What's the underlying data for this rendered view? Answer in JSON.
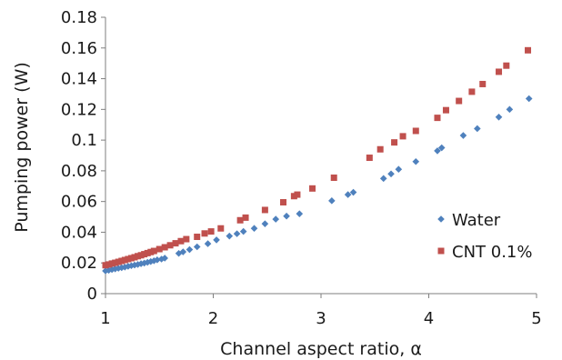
{
  "chart_data": {
    "type": "scatter",
    "title": "",
    "xlabel": "Channel aspect ratio, α",
    "ylabel": "Pumping power (W)",
    "xlim": [
      1,
      5
    ],
    "ylim": [
      0,
      0.18
    ],
    "xticks": [
      "1",
      "2",
      "3",
      "4",
      "5"
    ],
    "yticks": [
      "0",
      "0.02",
      "0.04",
      "0.06",
      "0.08",
      "0.1",
      "0.12",
      "0.14",
      "0.16",
      "0.18"
    ],
    "grid": false,
    "legend_position": "right",
    "series": [
      {
        "name": "Water",
        "marker": "diamond",
        "color": "#4f81bd",
        "x": [
          1.0,
          1.03,
          1.06,
          1.09,
          1.12,
          1.15,
          1.18,
          1.21,
          1.24,
          1.27,
          1.3,
          1.33,
          1.36,
          1.39,
          1.42,
          1.45,
          1.48,
          1.52,
          1.55,
          1.68,
          1.72,
          1.78,
          1.85,
          1.95,
          2.03,
          2.15,
          2.22,
          2.28,
          2.38,
          2.48,
          2.58,
          2.68,
          2.8,
          3.1,
          3.25,
          3.3,
          3.58,
          3.65,
          3.72,
          3.88,
          4.08,
          4.12,
          4.32,
          4.45,
          4.65,
          4.75,
          4.93
        ],
        "y": [
          0.0148,
          0.0152,
          0.0157,
          0.0161,
          0.0165,
          0.0169,
          0.0173,
          0.0178,
          0.0182,
          0.0186,
          0.019,
          0.0195,
          0.0199,
          0.0204,
          0.0209,
          0.0214,
          0.022,
          0.0225,
          0.0231,
          0.0262,
          0.0272,
          0.0287,
          0.0305,
          0.0325,
          0.035,
          0.0375,
          0.039,
          0.0405,
          0.0425,
          0.0455,
          0.0485,
          0.0505,
          0.052,
          0.0605,
          0.0645,
          0.066,
          0.075,
          0.078,
          0.081,
          0.086,
          0.093,
          0.095,
          0.103,
          0.1075,
          0.115,
          0.12,
          0.127
        ]
      },
      {
        "name": "CNT 0.1%",
        "marker": "square",
        "color": "#c0504d",
        "x": [
          1.0,
          1.03,
          1.06,
          1.09,
          1.12,
          1.15,
          1.18,
          1.21,
          1.24,
          1.27,
          1.3,
          1.33,
          1.36,
          1.39,
          1.42,
          1.45,
          1.5,
          1.55,
          1.6,
          1.65,
          1.7,
          1.75,
          1.85,
          1.92,
          1.98,
          2.07,
          2.25,
          2.3,
          2.48,
          2.65,
          2.75,
          2.78,
          2.92,
          3.12,
          3.45,
          3.55,
          3.68,
          3.76,
          3.88,
          4.08,
          4.16,
          4.28,
          4.4,
          4.5,
          4.65,
          4.72,
          4.92
        ],
        "y": [
          0.0185,
          0.019,
          0.0196,
          0.0201,
          0.0207,
          0.0213,
          0.0219,
          0.0225,
          0.0231,
          0.0237,
          0.0244,
          0.025,
          0.0257,
          0.0264,
          0.0271,
          0.0278,
          0.029,
          0.0302,
          0.0315,
          0.0328,
          0.0342,
          0.0355,
          0.037,
          0.0392,
          0.0405,
          0.0425,
          0.0478,
          0.0495,
          0.0545,
          0.0595,
          0.0635,
          0.0645,
          0.0685,
          0.0755,
          0.0885,
          0.094,
          0.0985,
          0.1025,
          0.106,
          0.1145,
          0.1195,
          0.1255,
          0.1315,
          0.1365,
          0.1445,
          0.1485,
          0.1585
        ]
      }
    ]
  }
}
